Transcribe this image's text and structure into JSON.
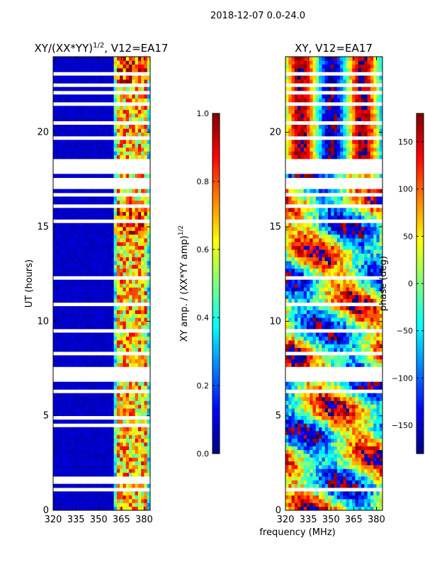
{
  "figure_title": "2018-12-07 0.0-24.0",
  "chart_data": [
    {
      "type": "heatmap",
      "title_prefix": "XY/(XX*YY)",
      "title_exponent": "1/2",
      "title_suffix": ", V12=EA17",
      "xlabel": "",
      "ylabel": "UT (hours)",
      "x_ticks": [
        "320",
        "335",
        "350",
        "365",
        "380"
      ],
      "x_tick_values": [
        320,
        335,
        350,
        365,
        380
      ],
      "y_ticks": [
        "0",
        "5",
        "10",
        "15",
        "20"
      ],
      "y_tick_values": [
        0,
        5,
        10,
        15,
        20
      ],
      "xlim": [
        320,
        384
      ],
      "ylim": [
        0,
        24
      ],
      "colormap": "jet",
      "colorbar": {
        "label_prefix": "XY amp. / (XX*YY amp)",
        "label_exponent": "1/2",
        "range": [
          0,
          1
        ],
        "ticks": [
          "0.0",
          "0.2",
          "0.4",
          "0.6",
          "0.8",
          "1.0"
        ],
        "tick_values": [
          0,
          0.2,
          0.4,
          0.6,
          0.8,
          1.0
        ]
      },
      "flagged_ut_ranges_hours": [
        [
          0.2,
          0.3
        ],
        [
          0.6,
          0.7
        ],
        [
          1.1,
          1.2
        ],
        [
          1.4,
          1.9
        ],
        [
          2.2,
          2.3
        ],
        [
          2.8,
          2.9
        ],
        [
          3.4,
          3.5
        ],
        [
          4.0,
          4.1
        ],
        [
          4.5,
          4.6
        ],
        [
          4.9,
          5.0
        ],
        [
          5.6,
          5.7
        ],
        [
          6.3,
          6.5
        ],
        [
          6.8,
          7.6
        ],
        [
          8.2,
          8.4
        ],
        [
          8.8,
          8.9
        ],
        [
          9.5,
          9.6
        ],
        [
          10.2,
          10.3
        ],
        [
          10.9,
          11.0
        ],
        [
          11.6,
          11.7
        ],
        [
          12.3,
          12.4
        ],
        [
          13.0,
          13.1
        ],
        [
          13.6,
          13.7
        ],
        [
          14.2,
          14.3
        ],
        [
          15.3,
          15.4
        ],
        [
          16.1,
          16.2
        ],
        [
          16.7,
          16.9
        ],
        [
          17.1,
          17.6
        ],
        [
          17.8,
          18.6
        ],
        [
          19.7,
          19.8
        ],
        [
          20.4,
          20.6
        ],
        [
          21.5,
          21.7
        ],
        [
          22.1,
          22.2
        ],
        [
          22.5,
          22.6
        ],
        [
          23.1,
          23.2
        ]
      ],
      "notes": "Normalized cross-amplitude dynamic spectrum; background ~0.05 (dark blue) across 320-360 MHz with bright channels (~0.4-0.9) between ~362 and 380 MHz."
    },
    {
      "type": "heatmap",
      "title": "XY, V12=EA17",
      "xlabel": "frequency (MHz)",
      "ylabel": "",
      "x_ticks": [
        "320",
        "335",
        "350",
        "365",
        "380"
      ],
      "x_tick_values": [
        320,
        335,
        350,
        365,
        380
      ],
      "y_ticks": [
        "0",
        "5",
        "10",
        "15",
        "20"
      ],
      "y_tick_values": [
        0,
        5,
        10,
        15,
        20
      ],
      "xlim": [
        320,
        384
      ],
      "ylim": [
        0,
        24
      ],
      "colormap": "jet",
      "colorbar": {
        "label": "phase (deg)",
        "range": [
          -180,
          180
        ],
        "ticks": [
          "−150",
          "−100",
          "−50",
          "0",
          "50",
          "100",
          "150"
        ],
        "tick_values": [
          -150,
          -100,
          -50,
          0,
          50,
          100,
          150
        ]
      },
      "flagged_ut_ranges_hours": [
        [
          0.6,
          0.7
        ],
        [
          1.1,
          1.2
        ],
        [
          1.6,
          1.7
        ],
        [
          2.2,
          2.3
        ],
        [
          2.8,
          2.9
        ],
        [
          3.4,
          3.5
        ],
        [
          4.0,
          4.1
        ],
        [
          4.6,
          4.7
        ],
        [
          5.2,
          5.3
        ],
        [
          5.8,
          5.9
        ],
        [
          6.3,
          6.5
        ],
        [
          6.8,
          7.6
        ],
        [
          8.2,
          8.4
        ],
        [
          8.8,
          8.9
        ],
        [
          9.5,
          9.6
        ],
        [
          10.2,
          10.3
        ],
        [
          10.9,
          11.0
        ],
        [
          11.6,
          11.7
        ],
        [
          12.3,
          12.4
        ],
        [
          13.0,
          13.1
        ],
        [
          13.6,
          13.7
        ],
        [
          14.2,
          14.3
        ],
        [
          15.3,
          15.4
        ],
        [
          16.1,
          16.2
        ],
        [
          16.7,
          16.9
        ],
        [
          17.1,
          17.6
        ],
        [
          17.8,
          18.6
        ],
        [
          19.7,
          19.8
        ],
        [
          20.4,
          20.6
        ],
        [
          21.5,
          21.7
        ],
        [
          22.1,
          22.2
        ],
        [
          22.5,
          22.6
        ],
        [
          23.1,
          23.2
        ]
      ],
      "notes": "Cross-hand phase dynamic spectrum spanning -180 to 180 deg; vertical banding at low frequencies and wrapped phase structure across UT."
    }
  ]
}
